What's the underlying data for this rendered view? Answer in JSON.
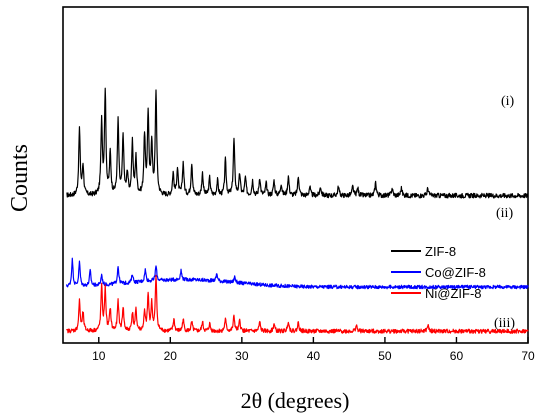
{
  "chart_data": {
    "type": "line",
    "xlabel": "2θ (degrees)",
    "ylabel": "Counts",
    "xlim": [
      5,
      70
    ],
    "x_ticks": [
      10,
      20,
      30,
      40,
      50,
      60,
      70
    ],
    "y_ticks_shown": false,
    "grid": false,
    "legend_position": "right-middle",
    "annotations": [
      "(i)",
      "(ii)",
      "(iii)"
    ],
    "series": [
      {
        "name": "ZIF-8",
        "color": "#000000",
        "annotation": "(i)",
        "baseline": 100,
        "noise": 1.6,
        "peaks": [
          [
            7.3,
            45
          ],
          [
            7.8,
            20
          ],
          [
            10.4,
            50
          ],
          [
            10.9,
            70
          ],
          [
            11.6,
            28
          ],
          [
            12.7,
            50
          ],
          [
            13.4,
            40
          ],
          [
            14.0,
            15
          ],
          [
            14.7,
            35
          ],
          [
            15.2,
            25
          ],
          [
            16.4,
            40
          ],
          [
            16.9,
            55
          ],
          [
            17.4,
            35
          ],
          [
            18.0,
            70
          ],
          [
            20.4,
            15
          ],
          [
            21.0,
            18
          ],
          [
            21.8,
            22
          ],
          [
            23.0,
            22
          ],
          [
            24.5,
            15
          ],
          [
            25.5,
            12
          ],
          [
            26.6,
            10
          ],
          [
            27.7,
            24
          ],
          [
            28.9,
            38
          ],
          [
            29.7,
            14
          ],
          [
            30.5,
            12
          ],
          [
            31.5,
            10
          ],
          [
            32.5,
            12
          ],
          [
            33.4,
            8
          ],
          [
            34.5,
            10
          ],
          [
            35.5,
            8
          ],
          [
            36.5,
            13
          ],
          [
            37.9,
            13
          ],
          [
            39.5,
            6
          ],
          [
            41.0,
            6
          ],
          [
            43.5,
            6
          ],
          [
            45.5,
            6
          ],
          [
            46.2,
            5
          ],
          [
            48.7,
            9
          ],
          [
            51.0,
            5
          ],
          [
            52.3,
            5
          ],
          [
            56.0,
            5
          ]
        ]
      },
      {
        "name": "Co@ZIF-8",
        "color": "#0000ff",
        "annotation": "(ii)",
        "baseline": 38,
        "noise": 1.2,
        "hump": [
          22,
          5,
          7
        ],
        "peaks": [
          [
            6.3,
            18
          ],
          [
            7.3,
            16
          ],
          [
            8.8,
            10
          ],
          [
            10.4,
            7
          ],
          [
            12.7,
            12
          ],
          [
            14.7,
            6
          ],
          [
            16.5,
            8
          ],
          [
            18.0,
            10
          ],
          [
            21.5,
            6
          ],
          [
            26.5,
            5
          ],
          [
            29.0,
            4
          ]
        ]
      },
      {
        "name": "Ni@ZIF-8",
        "color": "#ff0000",
        "annotation": "(iii)",
        "baseline": 8,
        "noise": 1.4,
        "peaks": [
          [
            7.3,
            20
          ],
          [
            7.8,
            12
          ],
          [
            10.4,
            30
          ],
          [
            10.9,
            28
          ],
          [
            11.6,
            15
          ],
          [
            12.7,
            20
          ],
          [
            13.4,
            16
          ],
          [
            14.7,
            12
          ],
          [
            15.2,
            14
          ],
          [
            16.4,
            12
          ],
          [
            16.9,
            24
          ],
          [
            17.4,
            18
          ],
          [
            18.0,
            36
          ],
          [
            20.5,
            8
          ],
          [
            21.8,
            8
          ],
          [
            23.0,
            6
          ],
          [
            24.5,
            6
          ],
          [
            25.5,
            5
          ],
          [
            27.7,
            8
          ],
          [
            28.9,
            10
          ],
          [
            29.7,
            7
          ],
          [
            32.5,
            6
          ],
          [
            34.5,
            5
          ],
          [
            36.5,
            7
          ],
          [
            37.9,
            6
          ],
          [
            46.0,
            4
          ],
          [
            56.0,
            4
          ]
        ]
      }
    ]
  }
}
